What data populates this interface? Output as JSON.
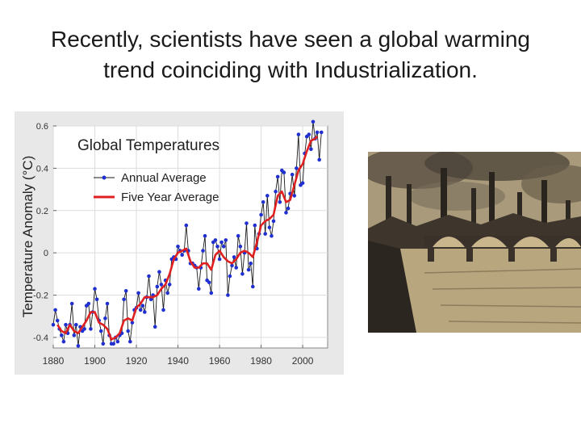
{
  "slide": {
    "title_line1": "Recently, scientists have seen a global warming",
    "title_line2": "trend coinciding with Industrialization."
  },
  "photo": {
    "subject": "industrial-city-smokestacks-bridge"
  },
  "colors": {
    "annual_line": "#1a1a1a",
    "annual_marker": "#2030d0",
    "five_year": "#e02020",
    "panel_bg": "#e8e8e8",
    "plot_bg": "#ffffff"
  },
  "chart_data": {
    "type": "line",
    "title": "Global Temperatures",
    "xlabel": "",
    "ylabel": "Temperature Anomaly (°C)",
    "xlim": [
      1880,
      2012
    ],
    "ylim": [
      -0.45,
      0.6
    ],
    "xticks": [
      1880,
      1900,
      1920,
      1940,
      1960,
      1980,
      2000
    ],
    "yticks": [
      -0.4,
      -0.2,
      0,
      0.2,
      0.4,
      0.6
    ],
    "ytick_labels": [
      "-0.4",
      "-0.2",
      "0",
      "0.2",
      "0.4",
      "0.6"
    ],
    "legend": [
      "Annual Average",
      "Five Year Average"
    ],
    "legend_position": "top-left",
    "series": [
      {
        "name": "Annual Average",
        "x": [
          1880,
          1881,
          1882,
          1883,
          1884,
          1885,
          1886,
          1887,
          1888,
          1889,
          1890,
          1891,
          1892,
          1893,
          1894,
          1895,
          1896,
          1897,
          1898,
          1899,
          1900,
          1901,
          1902,
          1903,
          1904,
          1905,
          1906,
          1907,
          1908,
          1909,
          1910,
          1911,
          1912,
          1913,
          1914,
          1915,
          1916,
          1917,
          1918,
          1919,
          1920,
          1921,
          1922,
          1923,
          1924,
          1925,
          1926,
          1927,
          1928,
          1929,
          1930,
          1931,
          1932,
          1933,
          1934,
          1935,
          1936,
          1937,
          1938,
          1939,
          1940,
          1941,
          1942,
          1943,
          1944,
          1945,
          1946,
          1947,
          1948,
          1949,
          1950,
          1951,
          1952,
          1953,
          1954,
          1955,
          1956,
          1957,
          1958,
          1959,
          1960,
          1961,
          1962,
          1963,
          1964,
          1965,
          1966,
          1967,
          1968,
          1969,
          1970,
          1971,
          1972,
          1973,
          1974,
          1975,
          1976,
          1977,
          1978,
          1979,
          1980,
          1981,
          1982,
          1983,
          1984,
          1985,
          1986,
          1987,
          1988,
          1989,
          1990,
          1991,
          1992,
          1993,
          1994,
          1995,
          1996,
          1997,
          1998,
          1999,
          2000,
          2001,
          2002,
          2003,
          2004,
          2005,
          2006,
          2007,
          2008,
          2009
        ],
        "values": [
          -0.34,
          -0.27,
          -0.32,
          -0.36,
          -0.39,
          -0.42,
          -0.34,
          -0.38,
          -0.34,
          -0.24,
          -0.39,
          -0.34,
          -0.44,
          -0.35,
          -0.37,
          -0.36,
          -0.25,
          -0.24,
          -0.36,
          -0.28,
          -0.17,
          -0.22,
          -0.32,
          -0.37,
          -0.43,
          -0.31,
          -0.24,
          -0.39,
          -0.43,
          -0.43,
          -0.4,
          -0.42,
          -0.39,
          -0.38,
          -0.22,
          -0.18,
          -0.37,
          -0.42,
          -0.33,
          -0.27,
          -0.26,
          -0.19,
          -0.27,
          -0.25,
          -0.28,
          -0.21,
          -0.11,
          -0.22,
          -0.2,
          -0.35,
          -0.16,
          -0.09,
          -0.15,
          -0.27,
          -0.13,
          -0.19,
          -0.15,
          -0.03,
          -0.02,
          -0.03,
          0.03,
          0.01,
          -0.01,
          0.01,
          0.13,
          0.01,
          -0.05,
          -0.05,
          -0.06,
          -0.07,
          -0.17,
          -0.07,
          0.01,
          0.08,
          -0.13,
          -0.14,
          -0.19,
          0.05,
          0.06,
          0.03,
          -0.03,
          0.05,
          0.03,
          0.06,
          -0.2,
          -0.11,
          -0.06,
          -0.02,
          -0.07,
          0.08,
          0.03,
          -0.1,
          0.0,
          0.14,
          -0.08,
          -0.05,
          -0.16,
          0.13,
          0.02,
          0.09,
          0.18,
          0.24,
          0.09,
          0.27,
          0.12,
          0.08,
          0.15,
          0.29,
          0.36,
          0.24,
          0.39,
          0.38,
          0.19,
          0.21,
          0.28,
          0.37,
          0.27,
          0.4,
          0.56,
          0.32,
          0.33,
          0.47,
          0.55,
          0.56,
          0.49,
          0.62,
          0.54,
          0.57,
          0.44,
          0.57
        ]
      },
      {
        "name": "Five Year Average",
        "x": [
          1882,
          1884,
          1886,
          1888,
          1890,
          1892,
          1894,
          1896,
          1898,
          1900,
          1902,
          1904,
          1906,
          1908,
          1910,
          1912,
          1914,
          1916,
          1918,
          1920,
          1922,
          1924,
          1926,
          1928,
          1930,
          1932,
          1934,
          1936,
          1938,
          1940,
          1942,
          1944,
          1946,
          1948,
          1950,
          1952,
          1954,
          1956,
          1958,
          1960,
          1962,
          1964,
          1966,
          1968,
          1970,
          1972,
          1974,
          1976,
          1978,
          1980,
          1982,
          1984,
          1986,
          1988,
          1990,
          1992,
          1994,
          1996,
          1998,
          2000,
          2002,
          2004,
          2006,
          2007
        ],
        "values": [
          -0.34,
          -0.37,
          -0.38,
          -0.34,
          -0.37,
          -0.38,
          -0.35,
          -0.32,
          -0.28,
          -0.28,
          -0.33,
          -0.34,
          -0.36,
          -0.41,
          -0.4,
          -0.38,
          -0.32,
          -0.31,
          -0.32,
          -0.26,
          -0.24,
          -0.21,
          -0.21,
          -0.21,
          -0.2,
          -0.17,
          -0.15,
          -0.1,
          -0.03,
          0.0,
          0.01,
          0.02,
          -0.04,
          -0.07,
          -0.07,
          -0.05,
          -0.05,
          -0.08,
          -0.01,
          0.01,
          -0.02,
          -0.04,
          -0.05,
          -0.03,
          0.0,
          0.01,
          0.0,
          -0.02,
          0.05,
          0.13,
          0.15,
          0.16,
          0.18,
          0.27,
          0.29,
          0.24,
          0.25,
          0.32,
          0.39,
          0.42,
          0.48,
          0.53,
          0.54,
          0.55
        ]
      }
    ]
  }
}
